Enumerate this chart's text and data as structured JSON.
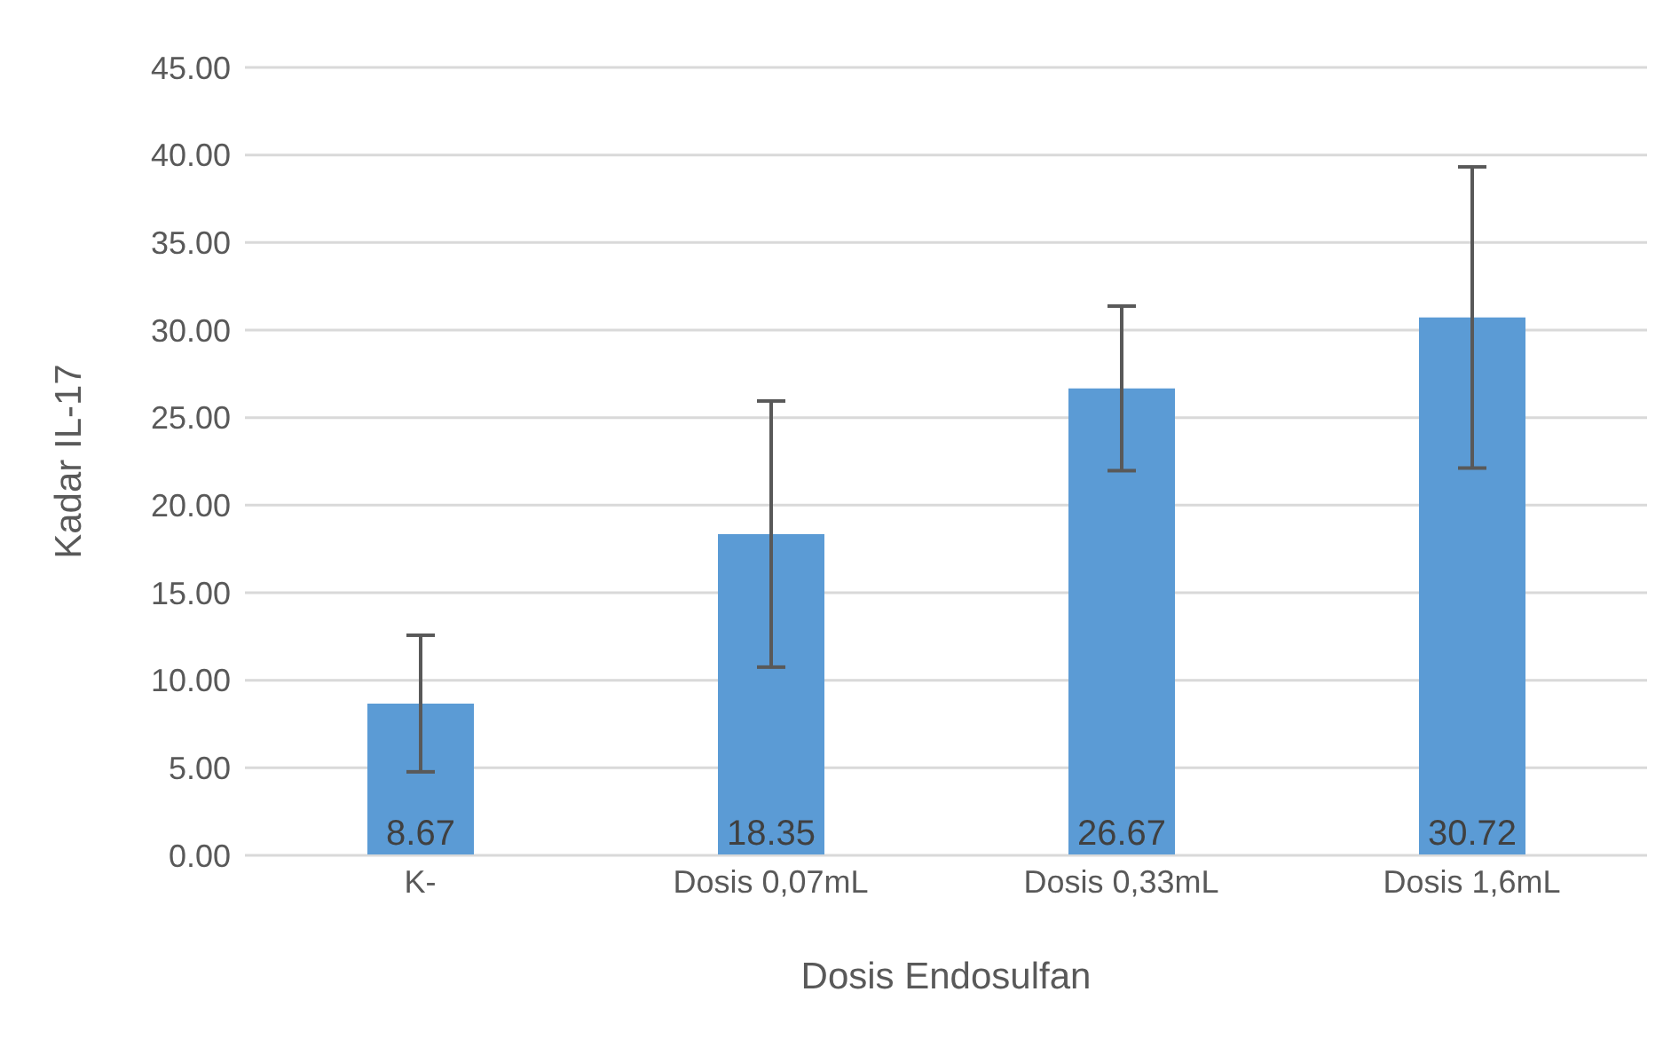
{
  "chart_data": {
    "type": "bar",
    "xlabel": "Dosis Endosulfan",
    "ylabel": "Kadar IL-17",
    "categories": [
      "K-",
      "Dosis 0,07mL",
      "Dosis 0,33mL",
      "Dosis 1,6mL"
    ],
    "values": [
      8.67,
      18.35,
      26.67,
      30.72
    ],
    "errors": [
      3.9,
      7.6,
      4.7,
      8.6
    ],
    "color": "#5b9bd5",
    "ylim": [
      0,
      45
    ],
    "yticks": [
      {
        "value": 0,
        "label": "0.00"
      },
      {
        "value": 5,
        "label": "5.00"
      },
      {
        "value": 10,
        "label": "10.00"
      },
      {
        "value": 15,
        "label": "15.00"
      },
      {
        "value": 20,
        "label": "20.00"
      },
      {
        "value": 25,
        "label": "25.00"
      },
      {
        "value": 30,
        "label": "30.00"
      },
      {
        "value": 35,
        "label": "35.00"
      },
      {
        "value": 40,
        "label": "40.00"
      },
      {
        "value": 45,
        "label": "45.00"
      }
    ],
    "grid": "y",
    "data_labels": true
  }
}
